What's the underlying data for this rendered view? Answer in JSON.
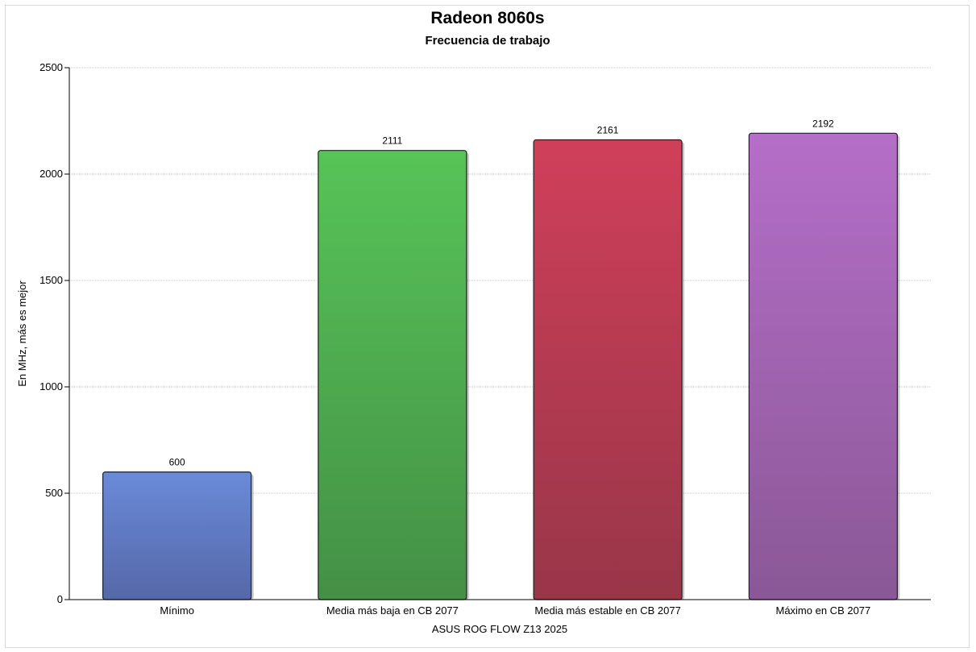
{
  "chart_data": {
    "type": "bar",
    "title": "Radeon 8060s",
    "subtitle": "Frecuencia de trabajo",
    "xlabel": "ASUS ROG FLOW Z13 2025",
    "ylabel": "En MHz, más es mejor",
    "categories": [
      "Mínimo",
      "Media más baja en CB 2077",
      "Media más estable en CB 2077",
      "Máximo en CB 2077"
    ],
    "values": [
      600,
      2111,
      2161,
      2192
    ],
    "data_labels": [
      "600",
      "2111",
      "2161",
      "2192"
    ],
    "bar_colors": [
      [
        "#6a8ad8",
        "#5568a8"
      ],
      [
        "#57c457",
        "#449046"
      ],
      [
        "#d03f5a",
        "#983648"
      ],
      [
        "#b56ec8",
        "#8a5896"
      ]
    ],
    "ylim": [
      0,
      2500
    ],
    "yticks": [
      0,
      500,
      1000,
      1500,
      2000,
      2500
    ],
    "ytick_labels": [
      "0",
      "500",
      "1000",
      "1500",
      "2000",
      "2500"
    ],
    "grid": true,
    "legend": "none"
  }
}
